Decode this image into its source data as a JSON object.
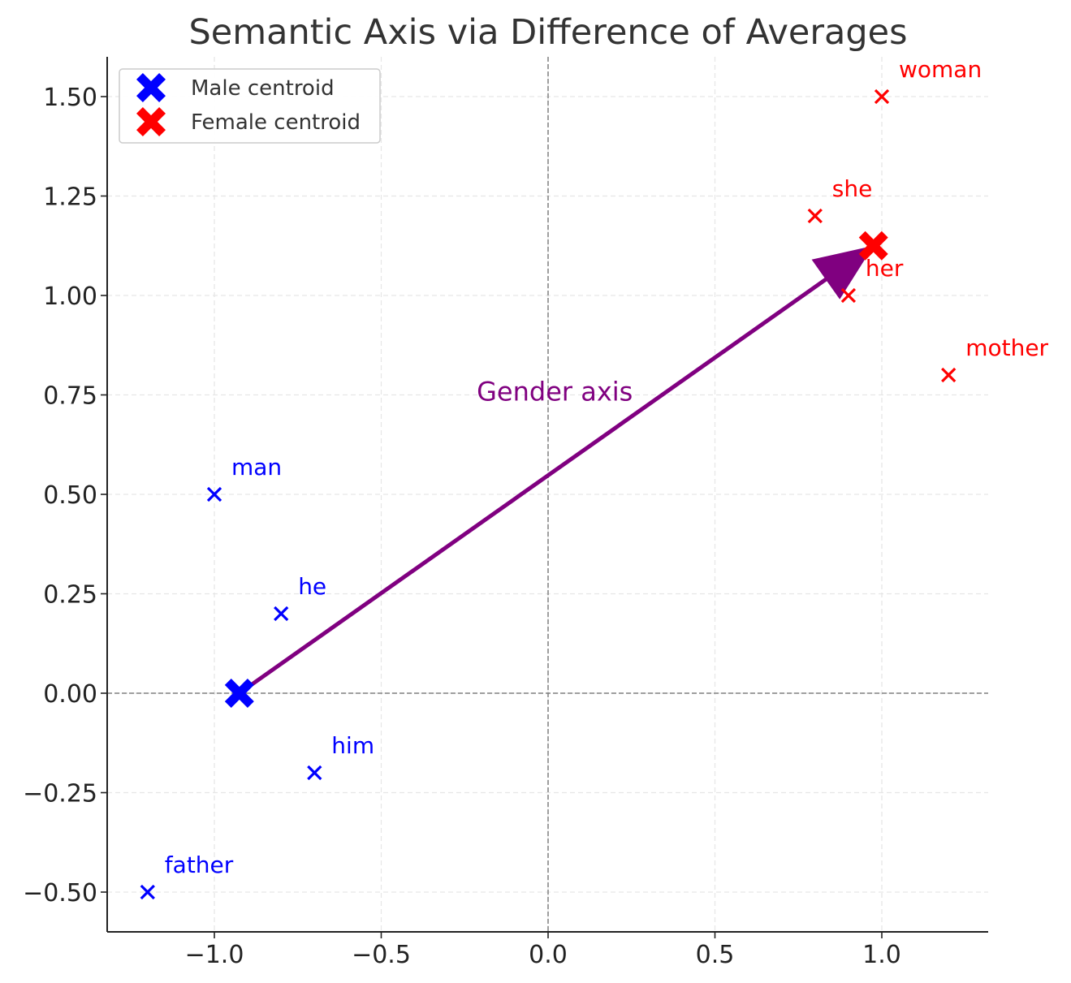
{
  "chart_data": {
    "type": "scatter",
    "title": "Semantic Axis via Difference of Averages",
    "xlabel": "",
    "ylabel": "",
    "xlim": [
      -1.32,
      1.32
    ],
    "ylim": [
      -0.6,
      1.6
    ],
    "xticks": [
      -1.0,
      -0.5,
      0.0,
      0.5,
      1.0
    ],
    "xtick_labels": [
      "−1.0",
      "−0.5",
      "0.0",
      "0.5",
      "1.0"
    ],
    "yticks": [
      -0.5,
      -0.25,
      0.0,
      0.25,
      0.5,
      0.75,
      1.0,
      1.25,
      1.5
    ],
    "ytick_labels": [
      "−0.50",
      "−0.25",
      "0.00",
      "0.25",
      "0.50",
      "0.75",
      "1.00",
      "1.25",
      "1.50"
    ],
    "grid": true,
    "zero_lines": true,
    "legend_position": "top-left",
    "legend": [
      {
        "label": "Male centroid",
        "color": "#0000ff",
        "marker": "X"
      },
      {
        "label": "Female centroid",
        "color": "#ff0000",
        "marker": "X"
      }
    ],
    "series": [
      {
        "group": "male",
        "color": "#0000ff",
        "marker": "x",
        "points": [
          {
            "label": "man",
            "x": -1.0,
            "y": 0.5
          },
          {
            "label": "he",
            "x": -0.8,
            "y": 0.2
          },
          {
            "label": "him",
            "x": -0.7,
            "y": -0.2
          },
          {
            "label": "father",
            "x": -1.2,
            "y": -0.5
          }
        ]
      },
      {
        "group": "female",
        "color": "#ff0000",
        "marker": "x",
        "points": [
          {
            "label": "woman",
            "x": 1.0,
            "y": 1.5
          },
          {
            "label": "she",
            "x": 0.8,
            "y": 1.2
          },
          {
            "label": "her",
            "x": 0.9,
            "y": 1.0
          },
          {
            "label": "mother",
            "x": 1.2,
            "y": 0.8
          }
        ]
      }
    ],
    "centroids": [
      {
        "name": "Male centroid",
        "x": -0.925,
        "y": 0.0,
        "color": "#0000ff"
      },
      {
        "name": "Female centroid",
        "x": 0.975,
        "y": 1.125,
        "color": "#ff0000"
      }
    ],
    "axis_arrow": {
      "from": [
        -0.925,
        0.0
      ],
      "to": [
        0.975,
        1.125
      ],
      "color": "#800080",
      "label": "Gender axis",
      "label_x": 0.02,
      "label_y": 0.76
    }
  }
}
